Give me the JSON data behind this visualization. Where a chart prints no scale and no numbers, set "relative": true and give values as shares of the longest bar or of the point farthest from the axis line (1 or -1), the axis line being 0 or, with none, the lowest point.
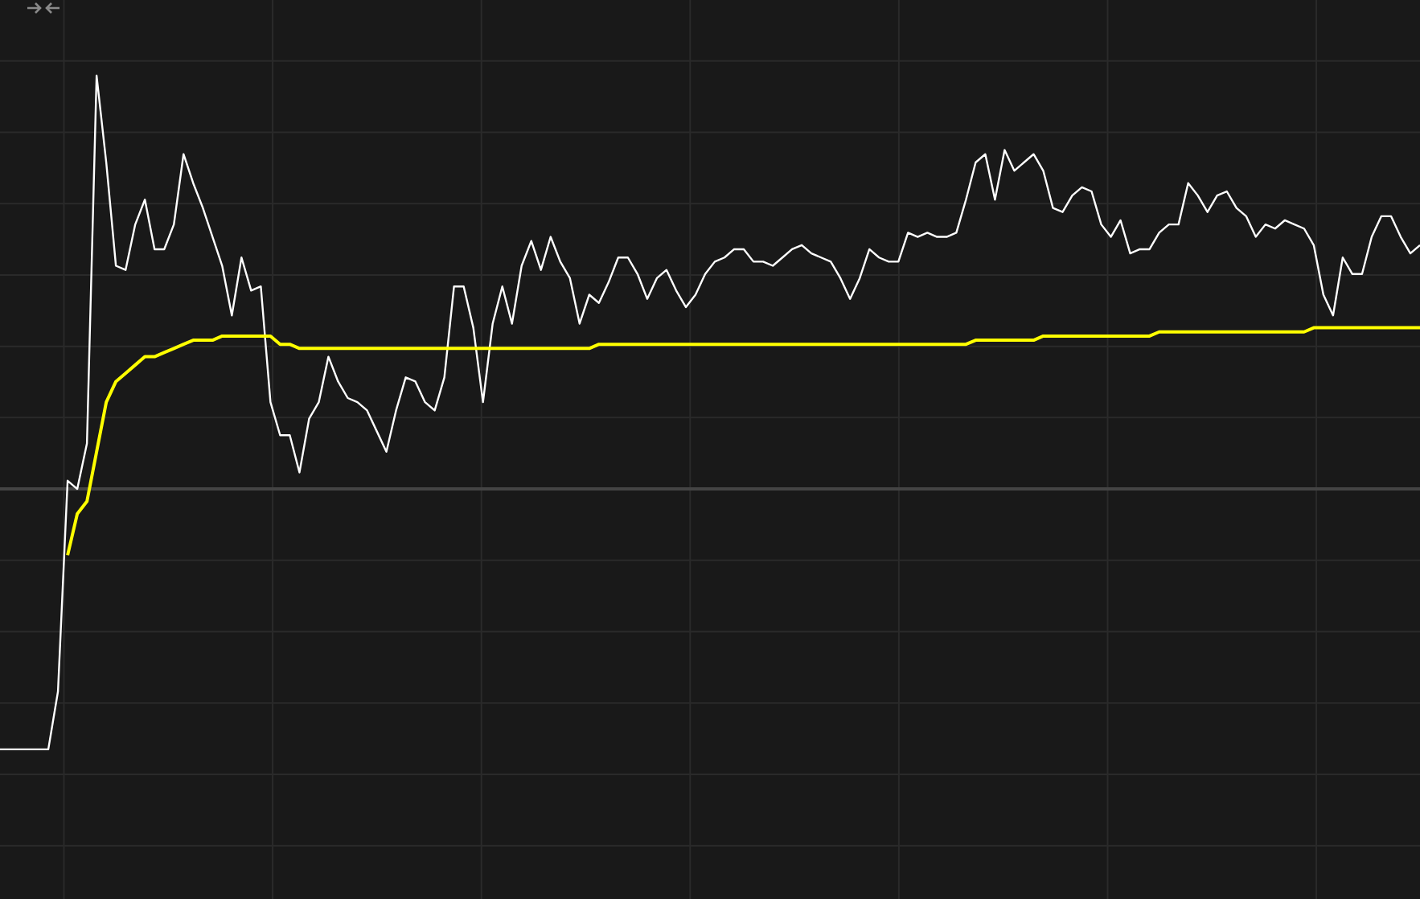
{
  "chart_data": {
    "type": "line",
    "relative": true,
    "grid": true,
    "legend": false,
    "marker": "none",
    "line_style": "solid",
    "categories": [
      null,
      null,
      null,
      null,
      null,
      null,
      null,
      null,
      null,
      null,
      null,
      null,
      null,
      null,
      null,
      null,
      null,
      null,
      null,
      null,
      null,
      null,
      null,
      null,
      null,
      null,
      null,
      null,
      null,
      null,
      null,
      null,
      null,
      null,
      null,
      null,
      null,
      null,
      null,
      null,
      null,
      null,
      null,
      null,
      null,
      null,
      null,
      null,
      null,
      null,
      null,
      null,
      null,
      null,
      null,
      null,
      null,
      null,
      null,
      null,
      null,
      null,
      null,
      null,
      null,
      null,
      null,
      null,
      null,
      null,
      null,
      null,
      null,
      null,
      null,
      null,
      null,
      null,
      null,
      null,
      null,
      null,
      null,
      null,
      null,
      null,
      null,
      null,
      null,
      null,
      null,
      null,
      null,
      null,
      null,
      null,
      null,
      null,
      null,
      null,
      null,
      null,
      null,
      null,
      null,
      null,
      null,
      null,
      null,
      null,
      null,
      null,
      null,
      null,
      null,
      null,
      null,
      null,
      null,
      null,
      null,
      null,
      null,
      null,
      null,
      null,
      null,
      null,
      null,
      null,
      null,
      null,
      null,
      null,
      null,
      null,
      null,
      null,
      null,
      null,
      null,
      null,
      null,
      null,
      null,
      null,
      null,
      null
    ],
    "series": [
      {
        "color": "#ffffff",
        "values": [
          -0.63,
          -0.63,
          -0.63,
          -0.63,
          -0.63,
          -0.63,
          -0.49,
          0.02,
          0.0,
          0.11,
          1.0,
          0.79,
          0.54,
          0.53,
          0.64,
          0.7,
          0.58,
          0.58,
          0.64,
          0.81,
          0.74,
          0.68,
          0.61,
          0.54,
          0.42,
          0.56,
          0.48,
          0.49,
          0.21,
          0.13,
          0.13,
          0.04,
          0.17,
          0.21,
          0.32,
          0.26,
          0.22,
          0.21,
          0.19,
          0.14,
          0.09,
          0.19,
          0.27,
          0.26,
          0.21,
          0.19,
          0.27,
          0.49,
          0.49,
          0.39,
          0.21,
          0.4,
          0.49,
          0.4,
          0.54,
          0.6,
          0.53,
          0.61,
          0.55,
          0.51,
          0.4,
          0.47,
          0.45,
          0.5,
          0.56,
          0.56,
          0.52,
          0.46,
          0.51,
          0.53,
          0.48,
          0.44,
          0.47,
          0.52,
          0.55,
          0.56,
          0.58,
          0.58,
          0.55,
          0.55,
          0.54,
          0.56,
          0.58,
          0.59,
          0.57,
          0.56,
          0.55,
          0.51,
          0.46,
          0.51,
          0.58,
          0.56,
          0.55,
          0.55,
          0.62,
          0.61,
          0.62,
          0.61,
          0.61,
          0.62,
          0.7,
          0.79,
          0.81,
          0.7,
          0.82,
          0.77,
          0.79,
          0.81,
          0.77,
          0.68,
          0.67,
          0.71,
          0.73,
          0.72,
          0.64,
          0.61,
          0.65,
          0.57,
          0.58,
          0.58,
          0.62,
          0.64,
          0.64,
          0.74,
          0.71,
          0.67,
          0.71,
          0.72,
          0.68,
          0.66,
          0.61,
          0.64,
          0.63,
          0.65,
          0.64,
          0.63,
          0.59,
          0.47,
          0.42,
          0.56,
          0.52,
          0.52,
          0.61,
          0.66,
          0.66,
          0.61,
          0.57,
          0.59
        ]
      },
      {
        "color": "#ffff00",
        "values": [
          null,
          null,
          null,
          null,
          null,
          null,
          null,
          -0.16,
          -0.06,
          -0.03,
          0.09,
          0.21,
          0.26,
          0.28,
          0.3,
          0.32,
          0.32,
          0.33,
          0.34,
          0.35,
          0.36,
          0.36,
          0.36,
          0.37,
          0.37,
          0.37,
          0.37,
          0.37,
          0.37,
          0.35,
          0.35,
          0.34,
          0.34,
          0.34,
          0.34,
          0.34,
          0.34,
          0.34,
          0.34,
          0.34,
          0.34,
          0.34,
          0.34,
          0.34,
          0.34,
          0.34,
          0.34,
          0.34,
          0.34,
          0.34,
          0.34,
          0.34,
          0.34,
          0.34,
          0.34,
          0.34,
          0.34,
          0.34,
          0.34,
          0.34,
          0.34,
          0.34,
          0.35,
          0.35,
          0.35,
          0.35,
          0.35,
          0.35,
          0.35,
          0.35,
          0.35,
          0.35,
          0.35,
          0.35,
          0.35,
          0.35,
          0.35,
          0.35,
          0.35,
          0.35,
          0.35,
          0.35,
          0.35,
          0.35,
          0.35,
          0.35,
          0.35,
          0.35,
          0.35,
          0.35,
          0.35,
          0.35,
          0.35,
          0.35,
          0.35,
          0.35,
          0.35,
          0.35,
          0.35,
          0.35,
          0.35,
          0.36,
          0.36,
          0.36,
          0.36,
          0.36,
          0.36,
          0.36,
          0.37,
          0.37,
          0.37,
          0.37,
          0.37,
          0.37,
          0.37,
          0.37,
          0.37,
          0.37,
          0.37,
          0.37,
          0.38,
          0.38,
          0.38,
          0.38,
          0.38,
          0.38,
          0.38,
          0.38,
          0.38,
          0.38,
          0.38,
          0.38,
          0.38,
          0.38,
          0.38,
          0.38,
          0.39,
          0.39,
          0.39,
          0.39,
          0.39,
          0.39,
          0.39,
          0.39,
          0.39,
          0.39,
          0.39,
          0.39
        ]
      }
    ]
  }
}
